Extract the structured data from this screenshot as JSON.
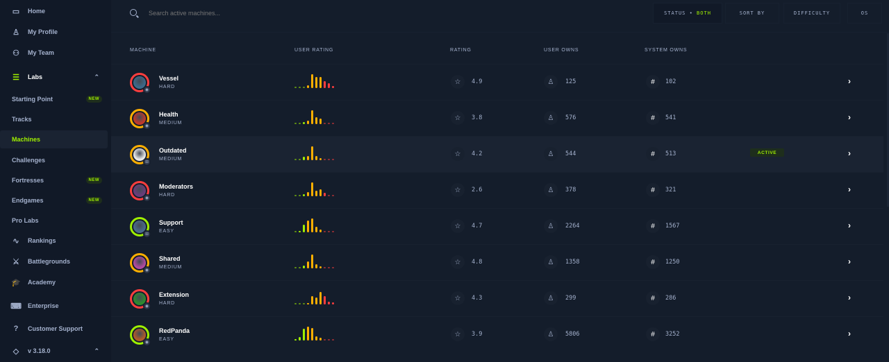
{
  "sidebar": {
    "items": [
      {
        "label": "Home",
        "icon": "monitor-icon"
      },
      {
        "label": "My Profile",
        "icon": "user-icon"
      },
      {
        "label": "My Team",
        "icon": "users-icon"
      },
      {
        "label": "Labs",
        "icon": "server-icon"
      },
      {
        "label": "Starting Point",
        "badge": "NEW"
      },
      {
        "label": "Tracks"
      },
      {
        "label": "Machines",
        "active": true
      },
      {
        "label": "Challenges"
      },
      {
        "label": "Fortresses",
        "badge": "NEW"
      },
      {
        "label": "Endgames",
        "badge": "NEW"
      },
      {
        "label": "Pro Labs"
      },
      {
        "label": "Rankings",
        "icon": "activity-icon"
      },
      {
        "label": "Battlegrounds",
        "icon": "swords-icon"
      },
      {
        "label": "Academy",
        "icon": "graduation-cap-icon"
      },
      {
        "label": "Enterprise",
        "icon": "laptop-icon"
      },
      {
        "label": "Customer Support",
        "icon": "help-circle-icon"
      },
      {
        "label": "v 3.18.0",
        "icon": "tag-icon"
      }
    ]
  },
  "search": {
    "placeholder": "Search active machines..."
  },
  "filters": {
    "status_label": "STATUS",
    "status_sep": "•",
    "status_value": "BOTH",
    "sort_by": "SORT BY",
    "difficulty": "DIFFICULTY",
    "os": "OS"
  },
  "columns": {
    "machine": "MACHINE",
    "user_rating": "USER RATING",
    "rating": "RATING",
    "user_owns": "USER OWNS",
    "system_owns": "SYSTEM OWNS"
  },
  "colors": {
    "accent": "#9fef00",
    "easy": "#9fef00",
    "medium": "#ffaf00",
    "hard": "#ff3e3e",
    "bg": "#141d2b",
    "sidebar": "#111927"
  },
  "machines": [
    {
      "name": "Vessel",
      "difficulty": "HARD",
      "os": "linux",
      "rating": "4.9",
      "user_owns": "125",
      "system_owns": "102",
      "user_rating_distribution": [
        5,
        5,
        5,
        20,
        100,
        80,
        80,
        50,
        35,
        15
      ]
    },
    {
      "name": "Health",
      "difficulty": "MEDIUM",
      "os": "linux",
      "rating": "3.8",
      "user_owns": "576",
      "system_owns": "541",
      "user_rating_distribution": [
        5,
        5,
        15,
        25,
        100,
        50,
        40,
        5,
        5,
        5
      ]
    },
    {
      "name": "Outdated",
      "difficulty": "MEDIUM",
      "os": "windows",
      "rating": "4.2",
      "user_owns": "544",
      "system_owns": "513",
      "status": "ACTIVE",
      "user_rating_distribution": [
        5,
        5,
        25,
        30,
        100,
        30,
        15,
        2,
        2,
        2
      ]
    },
    {
      "name": "Moderators",
      "difficulty": "HARD",
      "os": "linux",
      "rating": "2.6",
      "user_owns": "378",
      "system_owns": "321",
      "user_rating_distribution": [
        3,
        5,
        15,
        30,
        100,
        40,
        50,
        25,
        3,
        3
      ]
    },
    {
      "name": "Support",
      "difficulty": "EASY",
      "os": "windows",
      "rating": "4.7",
      "user_owns": "2264",
      "system_owns": "1567",
      "user_rating_distribution": [
        5,
        10,
        55,
        85,
        100,
        40,
        20,
        5,
        3,
        3
      ]
    },
    {
      "name": "Shared",
      "difficulty": "MEDIUM",
      "os": "linux",
      "rating": "4.8",
      "user_owns": "1358",
      "system_owns": "1250",
      "user_rating_distribution": [
        3,
        3,
        20,
        50,
        100,
        30,
        15,
        3,
        3,
        3
      ]
    },
    {
      "name": "Extension",
      "difficulty": "HARD",
      "os": "linux",
      "rating": "4.3",
      "user_owns": "299",
      "system_owns": "286",
      "user_rating_distribution": [
        5,
        5,
        5,
        10,
        60,
        50,
        90,
        60,
        20,
        15
      ]
    },
    {
      "name": "RedPanda",
      "difficulty": "EASY",
      "os": "linux",
      "rating": "3.9",
      "user_owns": "5806",
      "system_owns": "3252",
      "user_rating_distribution": [
        10,
        25,
        85,
        100,
        90,
        30,
        20,
        5,
        3,
        3
      ]
    }
  ]
}
